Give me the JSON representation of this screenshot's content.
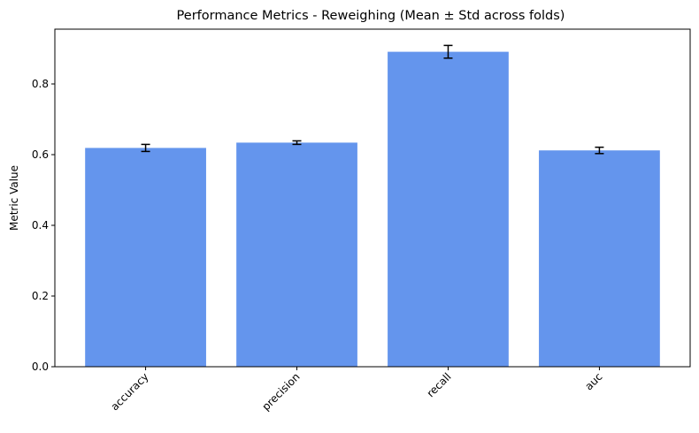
{
  "chart_data": {
    "type": "bar",
    "title": "Performance Metrics - Reweighing (Mean ± Std across folds)",
    "xlabel": "",
    "ylabel": "Metric Value",
    "categories": [
      "accuracy",
      "precision",
      "recall",
      "auc"
    ],
    "values": [
      0.619,
      0.634,
      0.891,
      0.612
    ],
    "errors": [
      0.01,
      0.005,
      0.018,
      0.009
    ],
    "ylim": [
      0,
      0.955
    ],
    "yticks": [
      0.0,
      0.2,
      0.4,
      0.6,
      0.8
    ],
    "ytick_labels": [
      "0.0",
      "0.2",
      "0.4",
      "0.6",
      "0.8"
    ],
    "bar_color": "#6495ED",
    "error_color": "#000000",
    "grid": false,
    "xtick_rotation": 45
  }
}
